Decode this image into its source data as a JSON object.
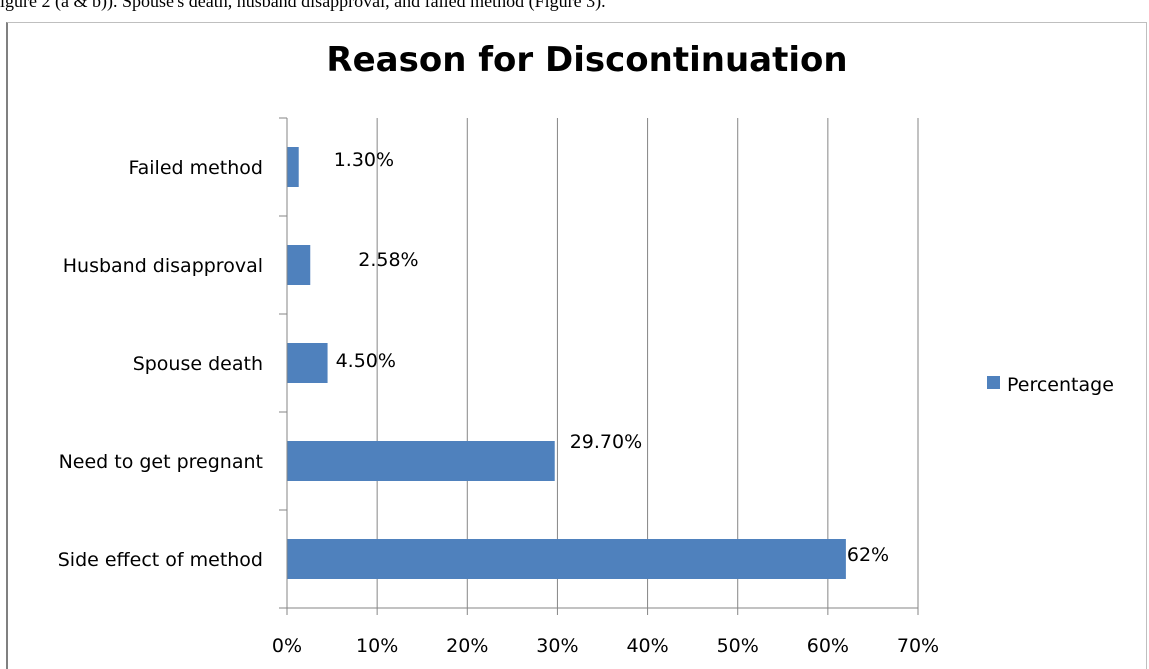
{
  "caption": "igure 2 (a & b)). Spouse's death, husband disapproval, and failed method (Figure 3).",
  "colors": {
    "bar": "#4f81bd",
    "grid": "#868686",
    "axis": "#868686"
  },
  "chart_data": {
    "type": "bar",
    "orientation": "horizontal",
    "title": "Reason for Discontinuation",
    "categories": [
      "Failed method",
      "Husband disapproval",
      "Spouse death",
      "Need to get pregnant",
      "Side effect of method"
    ],
    "series": [
      {
        "name": "Percentage",
        "values": [
          1.3,
          2.58,
          4.5,
          29.7,
          62
        ]
      }
    ],
    "data_labels": [
      "1.30%",
      "2.58%",
      "4.50%",
      "29.70%",
      "62%"
    ],
    "x_ticks": [
      "0%",
      "10%",
      "20%",
      "30%",
      "40%",
      "50%",
      "60%",
      "70%"
    ],
    "xlim": [
      0,
      70
    ],
    "grid": true,
    "legend_position": "right"
  }
}
